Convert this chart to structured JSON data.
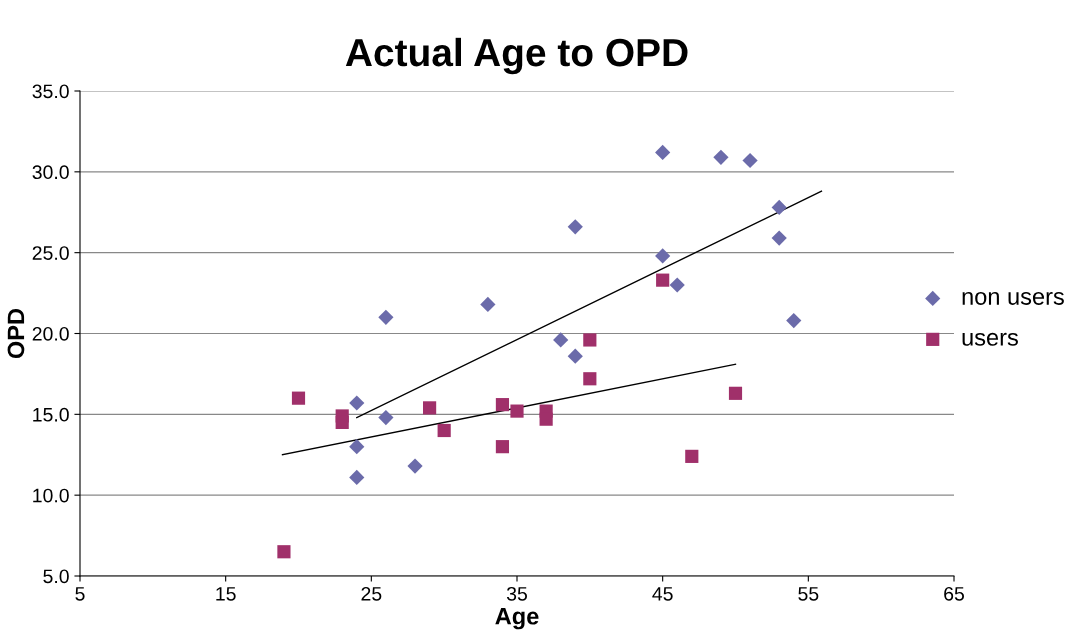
{
  "chart_data": {
    "type": "scatter",
    "title": "Actual Age to OPD",
    "xlabel": "Age",
    "ylabel": "OPD",
    "xlim": [
      5,
      65
    ],
    "xticks": [
      5,
      15,
      25,
      35,
      45,
      55,
      65
    ],
    "ylim": [
      5,
      35
    ],
    "yticks": [
      {
        "value": 5,
        "label": "5.0"
      },
      {
        "value": 10,
        "label": "10.0"
      },
      {
        "value": 15,
        "label": "15.0"
      },
      {
        "value": 20,
        "label": "20.0"
      },
      {
        "value": 25,
        "label": "25.0"
      },
      {
        "value": 30,
        "label": "30.0"
      },
      {
        "value": 35,
        "label": "35.0"
      }
    ],
    "grid": "y",
    "legend": "right",
    "series": [
      {
        "name": "non users",
        "color": "#6b6baa",
        "marker": "diamond",
        "x": [
          24,
          24,
          24,
          26,
          26,
          28,
          33,
          38,
          39,
          39,
          45,
          45,
          46,
          49,
          51,
          53,
          53,
          54
        ],
        "values": [
          15.7,
          13.0,
          11.1,
          21.0,
          14.8,
          11.8,
          21.8,
          19.6,
          26.6,
          18.6,
          31.2,
          24.8,
          23.0,
          30.9,
          30.7,
          27.8,
          25.9,
          20.8
        ]
      },
      {
        "name": "users",
        "color": "#a0306a",
        "marker": "square",
        "x": [
          19,
          20,
          23,
          23,
          29,
          30,
          34,
          34,
          35,
          37,
          37,
          40,
          40,
          45,
          47,
          50
        ],
        "values": [
          6.5,
          16.0,
          14.9,
          14.5,
          15.4,
          14.0,
          15.6,
          13.0,
          15.2,
          15.2,
          14.7,
          17.2,
          19.6,
          23.3,
          12.4,
          16.3
        ]
      },
      {
        "type": "line",
        "color": "#000000",
        "x": [
          24,
          55.9
        ],
        "values": [
          14.8,
          28.8
        ]
      },
      {
        "type": "line",
        "color": "#000000",
        "x": [
          18.9,
          50.0
        ],
        "values": [
          12.5,
          18.1
        ]
      }
    ]
  }
}
